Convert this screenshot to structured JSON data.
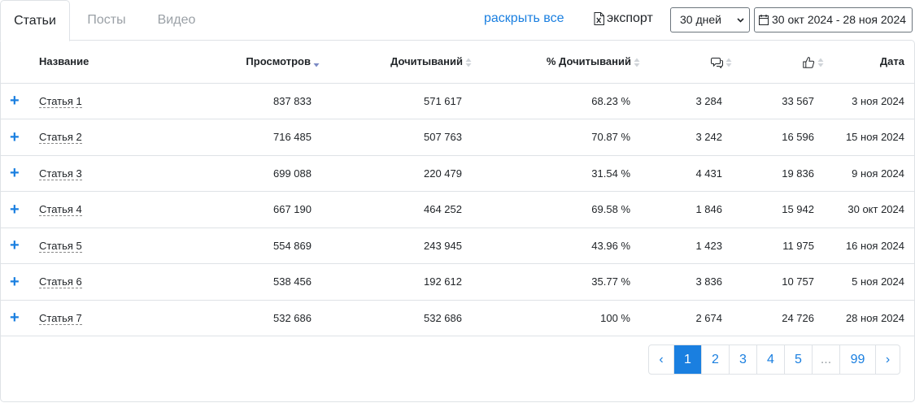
{
  "tabs": [
    {
      "label": "Статьи",
      "active": true
    },
    {
      "label": "Посты",
      "active": false
    },
    {
      "label": "Видео",
      "active": false
    }
  ],
  "toolbar": {
    "expand_all": "раскрыть все",
    "export": "экспорт",
    "period": "30 дней",
    "date_range": "30 окт 2024 - 28 ноя 2024"
  },
  "table": {
    "headers": {
      "name": "Название",
      "views": "Просмотров",
      "reads": "Дочитываний",
      "read_pct": "% Дочитываний",
      "comments_icon": "comments-icon",
      "likes_icon": "thumbs-up-icon",
      "date": "Дата"
    },
    "sorted_by": "views",
    "rows": [
      {
        "name": "Статья 1",
        "views": "837 833",
        "reads": "571 617",
        "pct": "68.23 %",
        "comments": "3 284",
        "likes": "33 567",
        "date": "3 ноя 2024"
      },
      {
        "name": "Статья 2",
        "views": "716 485",
        "reads": "507 763",
        "pct": "70.87 %",
        "comments": "3 242",
        "likes": "16 596",
        "date": "15 ноя 2024"
      },
      {
        "name": "Статья 3",
        "views": "699 088",
        "reads": "220 479",
        "pct": "31.54 %",
        "comments": "4 431",
        "likes": "19 836",
        "date": "9 ноя 2024"
      },
      {
        "name": "Статья 4",
        "views": "667 190",
        "reads": "464 252",
        "pct": "69.58 %",
        "comments": "1 846",
        "likes": "15 942",
        "date": "30 окт 2024"
      },
      {
        "name": "Статья 5",
        "views": "554 869",
        "reads": "243 945",
        "pct": "43.96 %",
        "comments": "1 423",
        "likes": "11 975",
        "date": "16 ноя 2024"
      },
      {
        "name": "Статья 6",
        "views": "538 456",
        "reads": "192 612",
        "pct": "35.77 %",
        "comments": "3 836",
        "likes": "10 757",
        "date": "5 ноя 2024"
      },
      {
        "name": "Статья 7",
        "views": "532 686",
        "reads": "532 686",
        "pct": "100 %",
        "comments": "2 674",
        "likes": "24 726",
        "date": "28 ноя 2024"
      }
    ]
  },
  "pagination": {
    "prev": "‹",
    "pages": [
      "1",
      "2",
      "3",
      "4",
      "5",
      "...",
      "99"
    ],
    "next": "›",
    "current": "1"
  },
  "colors": {
    "accent": "#1a7fe0",
    "border": "#dee2e6",
    "muted_tab": "#9aa0a6"
  }
}
